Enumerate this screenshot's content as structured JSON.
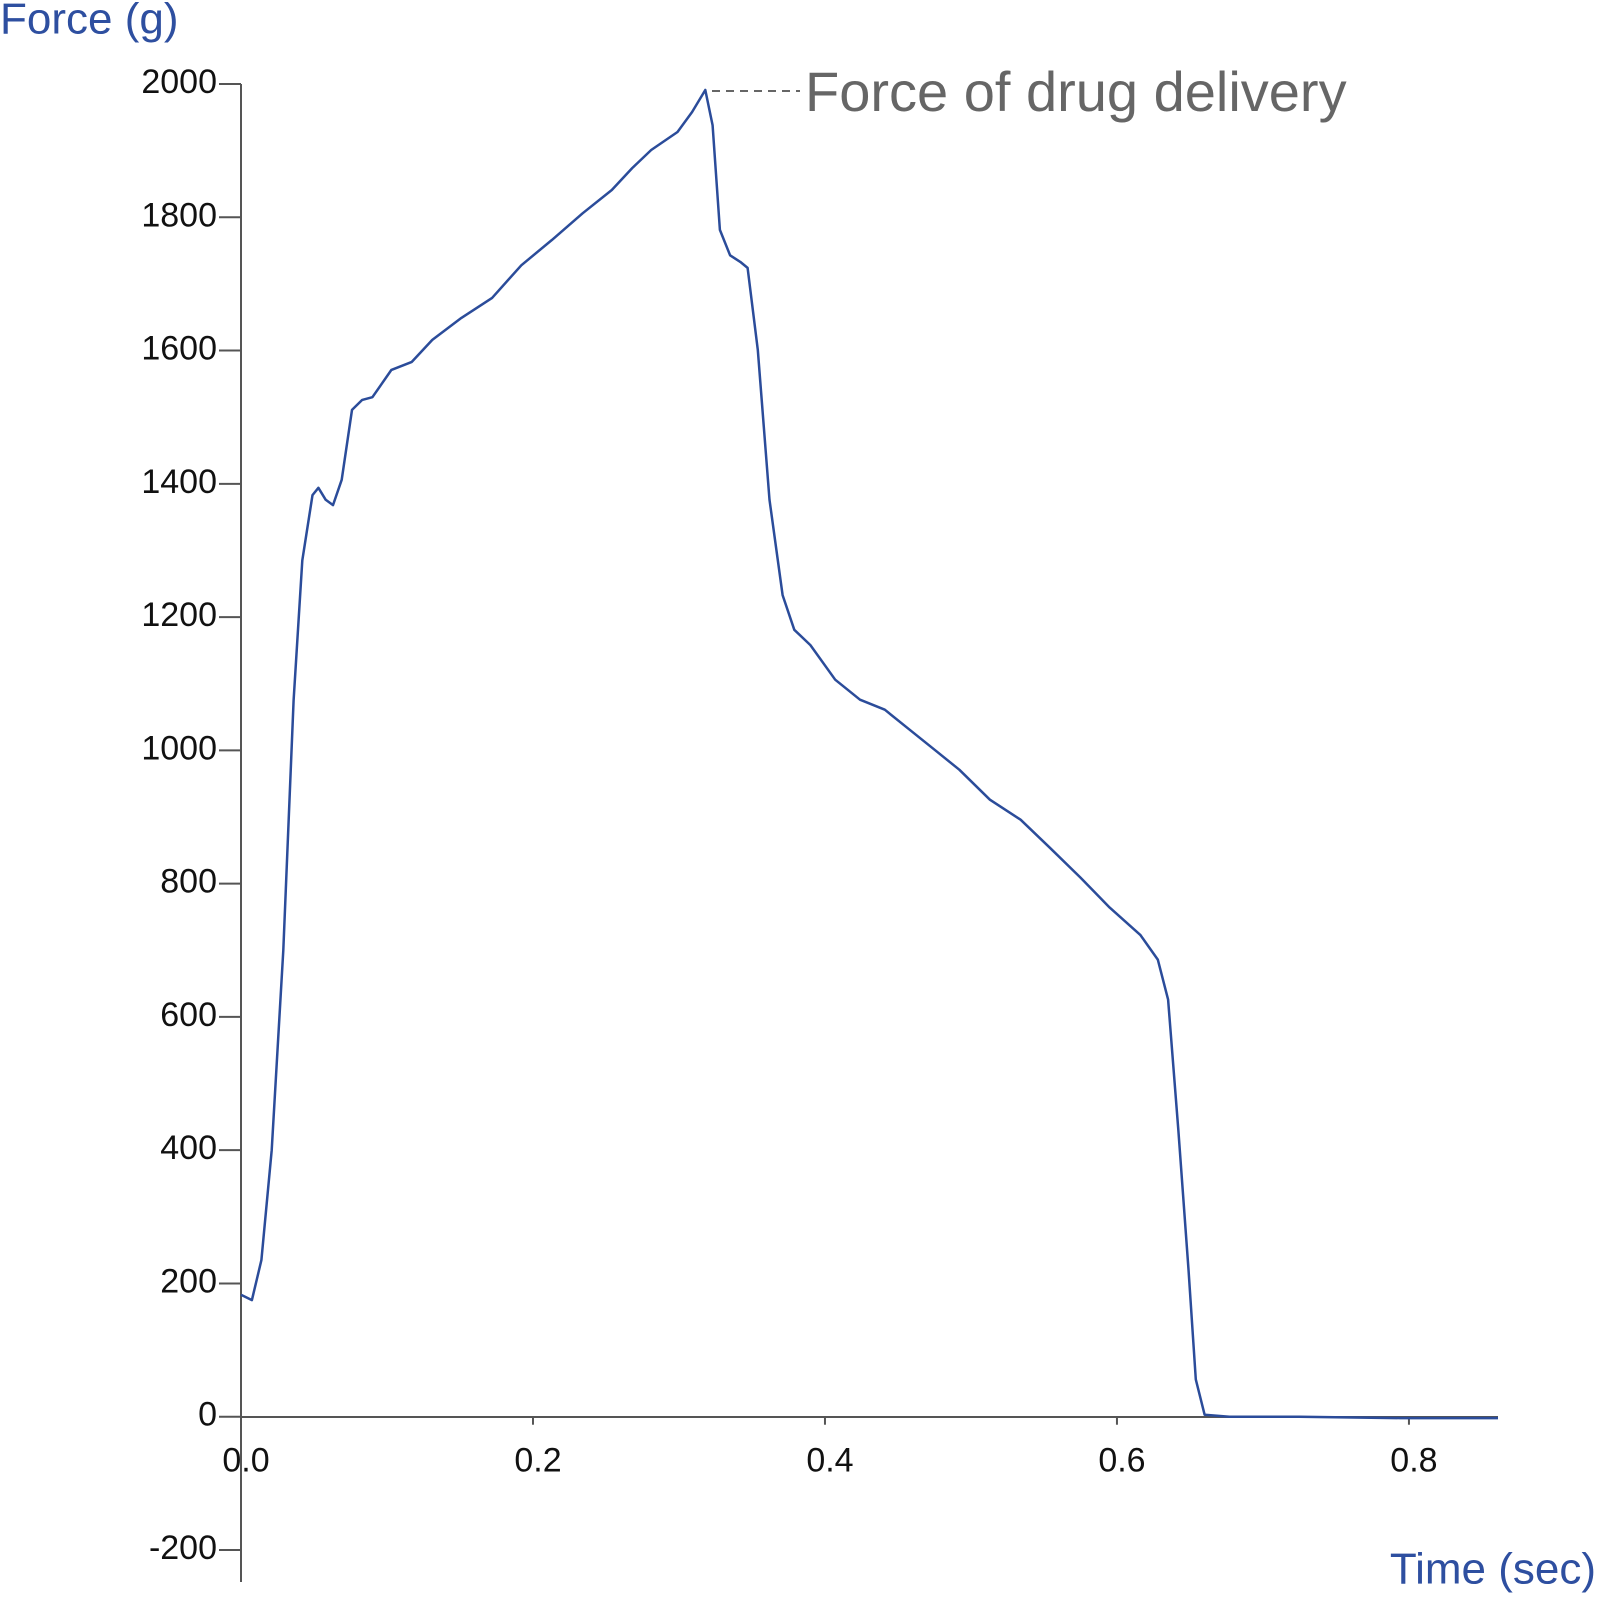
{
  "chart_data": {
    "type": "line",
    "ylabel": "Force (g)",
    "xlabel": "Time (sec)",
    "annotation": "Force of drug delivery",
    "color": "#2b4c9a",
    "x": [
      0,
      0.0075,
      0.014,
      0.021,
      0.029,
      0.036,
      0.042,
      0.049,
      0.053,
      0.058,
      0.063,
      0.069,
      0.076,
      0.083,
      0.09,
      0.103,
      0.117,
      0.131,
      0.151,
      0.172,
      0.192,
      0.213,
      0.234,
      0.254,
      0.268,
      0.281,
      0.299,
      0.309,
      0.318,
      0.323,
      0.328,
      0.335,
      0.342,
      0.347,
      0.354,
      0.362,
      0.371,
      0.379,
      0.39,
      0.407,
      0.424,
      0.441,
      0.458,
      0.475,
      0.492,
      0.513,
      0.534,
      0.554,
      0.575,
      0.595,
      0.616,
      0.628,
      0.635,
      0.642,
      0.649,
      0.654,
      0.66,
      0.677,
      0.725,
      0.794,
      0.861
    ],
    "values": [
      183,
      175,
      235,
      400,
      700,
      1075,
      1285,
      1383,
      1394,
      1376,
      1368,
      1406,
      1511,
      1526,
      1530,
      1571,
      1583,
      1616,
      1649,
      1679,
      1728,
      1766,
      1806,
      1841,
      1874,
      1901,
      1928,
      1958,
      1991,
      1938,
      1781,
      1743,
      1733,
      1724,
      1601,
      1376,
      1233,
      1181,
      1158,
      1106,
      1076,
      1061,
      1031,
      1001,
      971,
      926,
      896,
      854,
      809,
      764,
      723,
      686,
      626,
      431,
      221,
      56,
      3,
      0,
      0,
      -2,
      -2
    ],
    "xlim": [
      0,
      0.861
    ],
    "ylim": [
      -200,
      2000
    ],
    "xticks": [
      {
        "value": 0,
        "label": "0.0"
      },
      0.2,
      0.4,
      0.6,
      0.8
    ],
    "yticks": [
      -200,
      0,
      200,
      400,
      600,
      800,
      1000,
      1200,
      1400,
      1600,
      1800,
      2000
    ]
  }
}
